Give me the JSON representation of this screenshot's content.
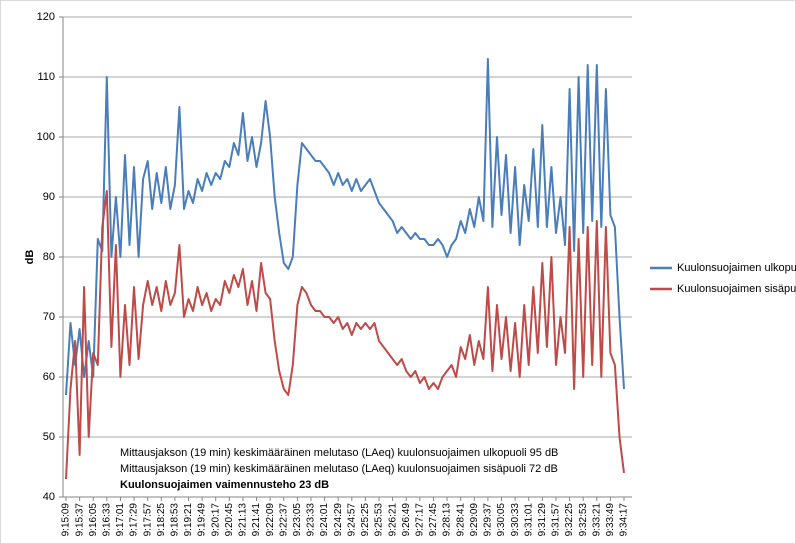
{
  "chart_data": {
    "type": "line",
    "y_label": "dB",
    "categories": [
      "9:15:09",
      null,
      null,
      "9:15:37",
      null,
      null,
      "9:16:05",
      null,
      null,
      "9:16:33",
      null,
      null,
      "9:17:01",
      null,
      null,
      "9:17:29",
      null,
      null,
      "9:17:57",
      null,
      null,
      "9:18:25",
      null,
      null,
      "9:18:53",
      null,
      null,
      "9:19:21",
      null,
      null,
      "9:19:49",
      null,
      null,
      "9:20:17",
      null,
      null,
      "9:20:45",
      null,
      null,
      "9:21:13",
      null,
      null,
      "9:21:41",
      null,
      null,
      "9:22:09",
      null,
      null,
      "9:22:37",
      null,
      null,
      "9:23:05",
      null,
      null,
      "9:23:33",
      null,
      null,
      "9:24:01",
      null,
      null,
      "9:24:29",
      null,
      null,
      "9:24:57",
      null,
      null,
      "9:25:25",
      null,
      null,
      "9:25:53",
      null,
      null,
      "9:26:21",
      null,
      null,
      "9:26:49",
      null,
      null,
      "9:27:17",
      null,
      null,
      "9:27:45",
      null,
      null,
      "9:28:13",
      null,
      null,
      "9:28:41",
      null,
      null,
      "9:29:09",
      null,
      null,
      "9:29:37",
      null,
      null,
      "9:30:05",
      null,
      null,
      "9:30:33",
      null,
      null,
      "9:31:01",
      null,
      null,
      "9:31:29",
      null,
      null,
      "9:31:57",
      null,
      null,
      "9:32:25",
      null,
      null,
      "9:32:53",
      null,
      null,
      "9:33:21",
      null,
      null,
      "9:33:49",
      null,
      null,
      "9:34:17"
    ],
    "series": [
      {
        "name": "Kuulonsuojaimen ulkopuoli",
        "color": "#4a7ebb",
        "values": [
          57,
          69,
          62,
          68,
          60,
          66,
          60,
          83,
          81,
          110,
          80,
          90,
          80,
          97,
          82,
          95,
          80,
          93,
          96,
          88,
          94,
          89,
          95,
          88,
          92,
          105,
          88,
          91,
          89,
          93,
          91,
          94,
          92,
          94,
          93,
          96,
          95,
          99,
          97,
          104,
          96,
          100,
          95,
          99,
          106,
          100,
          90,
          84,
          79,
          78,
          80,
          92,
          99,
          98,
          97,
          96,
          96,
          95,
          94,
          92,
          94,
          92,
          93,
          91,
          93,
          91,
          92,
          93,
          91,
          89,
          88,
          87,
          86,
          84,
          85,
          84,
          83,
          84,
          83,
          83,
          82,
          82,
          83,
          82,
          80,
          82,
          83,
          86,
          84,
          88,
          85,
          90,
          86,
          113,
          85,
          100,
          87,
          97,
          84,
          95,
          82,
          92,
          86,
          98,
          85,
          102,
          85,
          95,
          84,
          90,
          82,
          108,
          81,
          110,
          84,
          112,
          86,
          112,
          85,
          108,
          87,
          85,
          70,
          58
        ]
      },
      {
        "name": "Kuulonsuojaimen sisäpuoli",
        "color": "#be4b48",
        "values": [
          43,
          58,
          66,
          47,
          75,
          50,
          64,
          62,
          85,
          91,
          65,
          82,
          60,
          72,
          62,
          75,
          63,
          72,
          76,
          72,
          75,
          71,
          76,
          72,
          74,
          82,
          70,
          73,
          71,
          75,
          72,
          74,
          71,
          73,
          72,
          76,
          74,
          77,
          75,
          78,
          72,
          76,
          71,
          79,
          74,
          73,
          66,
          61,
          58,
          57,
          62,
          72,
          75,
          74,
          72,
          71,
          71,
          70,
          70,
          69,
          70,
          68,
          69,
          67,
          69,
          68,
          69,
          68,
          69,
          66,
          65,
          64,
          63,
          62,
          63,
          61,
          60,
          61,
          59,
          60,
          58,
          59,
          58,
          60,
          61,
          62,
          60,
          65,
          63,
          67,
          62,
          66,
          63,
          75,
          61,
          72,
          63,
          70,
          61,
          69,
          60,
          72,
          62,
          75,
          64,
          79,
          65,
          80,
          62,
          70,
          64,
          85,
          58,
          83,
          60,
          85,
          62,
          86,
          60,
          85,
          64,
          62,
          50,
          44
        ]
      }
    ],
    "ylim": [
      40,
      120
    ],
    "yticks": [
      40,
      50,
      60,
      70,
      80,
      90,
      100,
      110,
      120
    ],
    "grid": true,
    "legend": "right",
    "annotations": [
      "Mittausjakson (19 min) keskimääräinen melutaso (LAeq) kuulonsuojaimen ulkopuoli 95 dB",
      "Mittausjakson (19 min) keskimääräinen melutaso (LAeq) kuulonsuojaimen sisäpuoli 72 dB",
      "Kuulonsuojaimen vaimennusteho 23 dB"
    ]
  }
}
